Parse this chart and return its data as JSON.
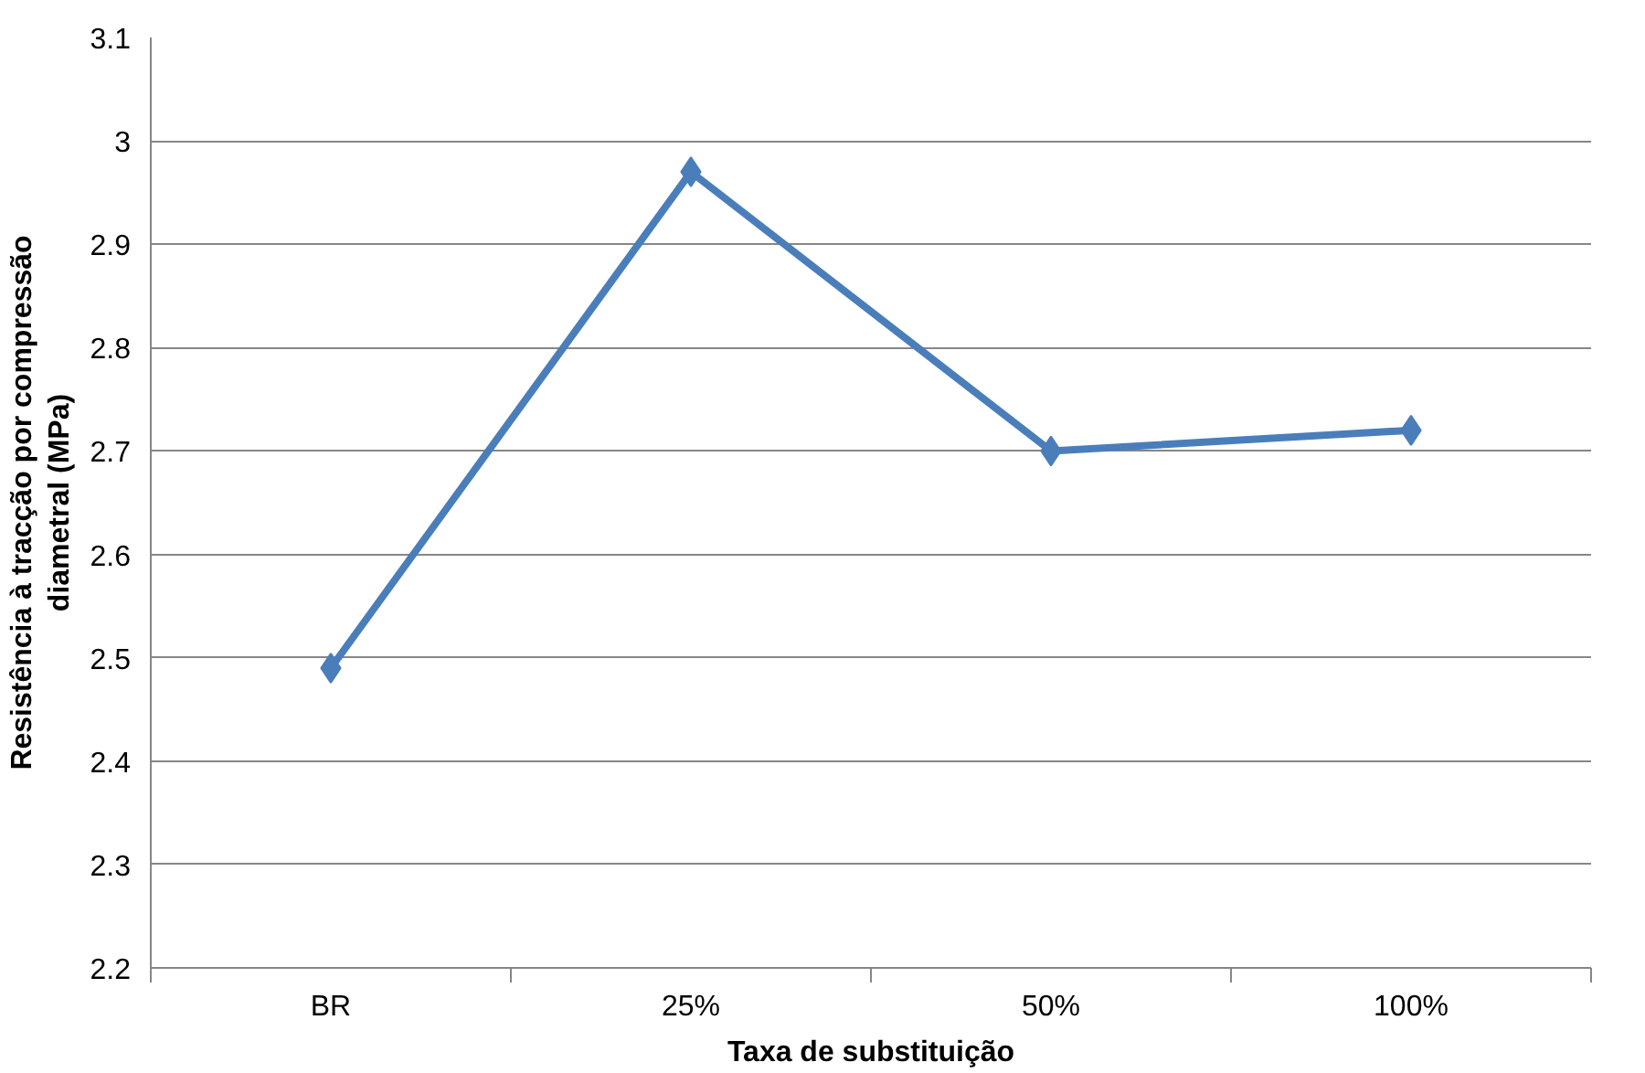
{
  "chart_data": {
    "type": "line",
    "xlabel": "Taxa de substituição",
    "ylabel": "Resistência à tracção por compressão\ndiametral (MPa)",
    "categories": [
      "BR",
      "25%",
      "50%",
      "100%"
    ],
    "series": [
      {
        "color": "#4a7ebb",
        "values": [
          2.49,
          2.97,
          2.7,
          2.72
        ]
      }
    ],
    "ylim": [
      2.2,
      3.1
    ],
    "yticks": [
      2.2,
      2.3,
      2.4,
      2.5,
      2.6,
      2.7,
      2.8,
      2.9,
      3,
      3.1
    ],
    "grid": "y",
    "marker": "diamond",
    "line_style": "solid"
  }
}
